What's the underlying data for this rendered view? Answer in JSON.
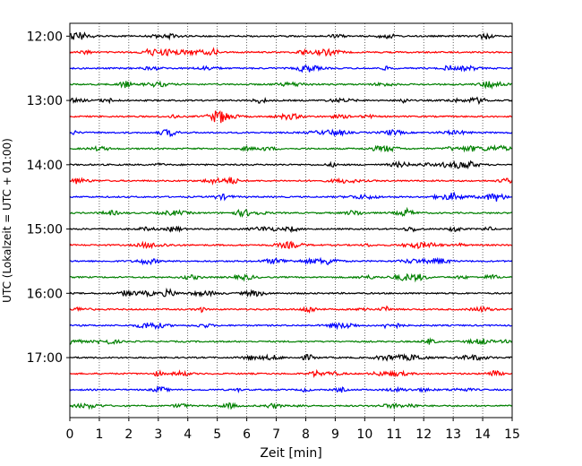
{
  "chart_data": {
    "type": "line",
    "title": "",
    "xlabel": "Zeit  [min]",
    "ylabel": "UTC (Lokalzeit = UTC + 01:00)",
    "xlim": [
      0,
      15
    ],
    "x_ticks": [
      "0",
      "1",
      "2",
      "3",
      "4",
      "5",
      "6",
      "7",
      "8",
      "9",
      "10",
      "11",
      "12",
      "13",
      "14",
      "15"
    ],
    "y_ticks": [
      "12:00",
      "13:00",
      "14:00",
      "15:00",
      "16:00",
      "17:00"
    ],
    "ylim": [
      "11:48",
      "17:56"
    ],
    "trace_interval_min": 15,
    "traces": [
      {
        "start": "12:00",
        "color": "#000000"
      },
      {
        "start": "12:15",
        "color": "#ff0000"
      },
      {
        "start": "12:30",
        "color": "#0000ff"
      },
      {
        "start": "12:45",
        "color": "#008000"
      },
      {
        "start": "13:00",
        "color": "#000000"
      },
      {
        "start": "13:15",
        "color": "#ff0000"
      },
      {
        "start": "13:30",
        "color": "#0000ff"
      },
      {
        "start": "13:45",
        "color": "#008000"
      },
      {
        "start": "14:00",
        "color": "#000000"
      },
      {
        "start": "14:15",
        "color": "#ff0000"
      },
      {
        "start": "14:30",
        "color": "#0000ff"
      },
      {
        "start": "14:45",
        "color": "#008000"
      },
      {
        "start": "15:00",
        "color": "#000000"
      },
      {
        "start": "15:15",
        "color": "#ff0000"
      },
      {
        "start": "15:30",
        "color": "#0000ff"
      },
      {
        "start": "15:45",
        "color": "#008000"
      },
      {
        "start": "16:00",
        "color": "#000000"
      },
      {
        "start": "16:15",
        "color": "#ff0000"
      },
      {
        "start": "16:30",
        "color": "#0000ff"
      },
      {
        "start": "16:45",
        "color": "#008000"
      },
      {
        "start": "17:00",
        "color": "#000000"
      },
      {
        "start": "17:15",
        "color": "#ff0000"
      },
      {
        "start": "17:30",
        "color": "#0000ff"
      },
      {
        "start": "17:45",
        "color": "#008000"
      }
    ],
    "grid": "vertical-dotted"
  }
}
